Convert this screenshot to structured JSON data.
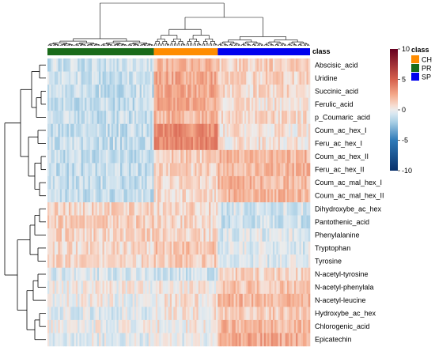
{
  "chart_data": {
    "type": "heatmap",
    "title": "",
    "class_bar_label": "class",
    "rows": [
      "Abscisic_acid",
      "Uridine",
      "Succinic_acid",
      "Ferulic_acid",
      "p_Coumaric_acid",
      "Coum_ac_hex_I",
      "Feru_ac_hex_I",
      "Coum_ac_hex_II",
      "Feru_ac_hex_II",
      "Coum_ac_mal_hex_I",
      "Coum_ac_mal_hex_II",
      "Dihydroxybe_ac_hex",
      "Pantothenic_acid",
      "Phenylalanine",
      "Tryptophan",
      "Tyrosine",
      "N-acetyl-tyrosine",
      "N-acetyl-phenylala",
      "N-acetyl-leucine",
      "Hydroxybe_ac_hex",
      "Chlorogenic_acid",
      "Epicatechin"
    ],
    "column_groups": [
      {
        "name": "PR",
        "color": "#1a6b1a",
        "count": 60
      },
      {
        "name": "CH",
        "color": "#ff8c00",
        "count": 36
      },
      {
        "name": "SP",
        "color": "#0000ee",
        "count": 52
      }
    ],
    "group_mean_scores": {
      "PR": [
        -1.0,
        -1.0,
        -1.2,
        -1.2,
        -1.2,
        -1.2,
        -1.2,
        -1.2,
        -1.2,
        -1.2,
        -1.2,
        1.0,
        1.2,
        1.0,
        0.8,
        0.8,
        -0.6,
        0.2,
        0.0,
        -0.5,
        0.0,
        -0.3
      ],
      "CH": [
        2.0,
        2.5,
        2.5,
        2.5,
        2.0,
        3.5,
        3.5,
        1.2,
        1.0,
        0.8,
        0.8,
        1.0,
        0.8,
        0.8,
        1.5,
        1.2,
        -0.8,
        0.3,
        0.5,
        0.5,
        0.2,
        -0.3
      ],
      "SP": [
        1.2,
        1.0,
        0.8,
        0.6,
        0.8,
        0.5,
        0.5,
        2.0,
        2.0,
        2.0,
        2.0,
        -0.8,
        -1.0,
        -0.5,
        -0.6,
        -0.4,
        1.0,
        1.5,
        2.0,
        1.2,
        2.0,
        2.5
      ]
    },
    "color_scale": {
      "min": -10,
      "max": 10,
      "ticks": [
        "10",
        "5",
        "0",
        "-5",
        "-10"
      ],
      "low_color": "#08306b",
      "mid_color": "#f4f4f4",
      "high_color": "#67001f"
    },
    "legend": {
      "title": "class",
      "entries": [
        {
          "label": "CH",
          "color": "#ff8c00"
        },
        {
          "label": "PR",
          "color": "#1a6b1a"
        },
        {
          "label": "SP",
          "color": "#0000ee"
        }
      ]
    },
    "row_dendrogram": true,
    "column_dendrogram": true
  }
}
